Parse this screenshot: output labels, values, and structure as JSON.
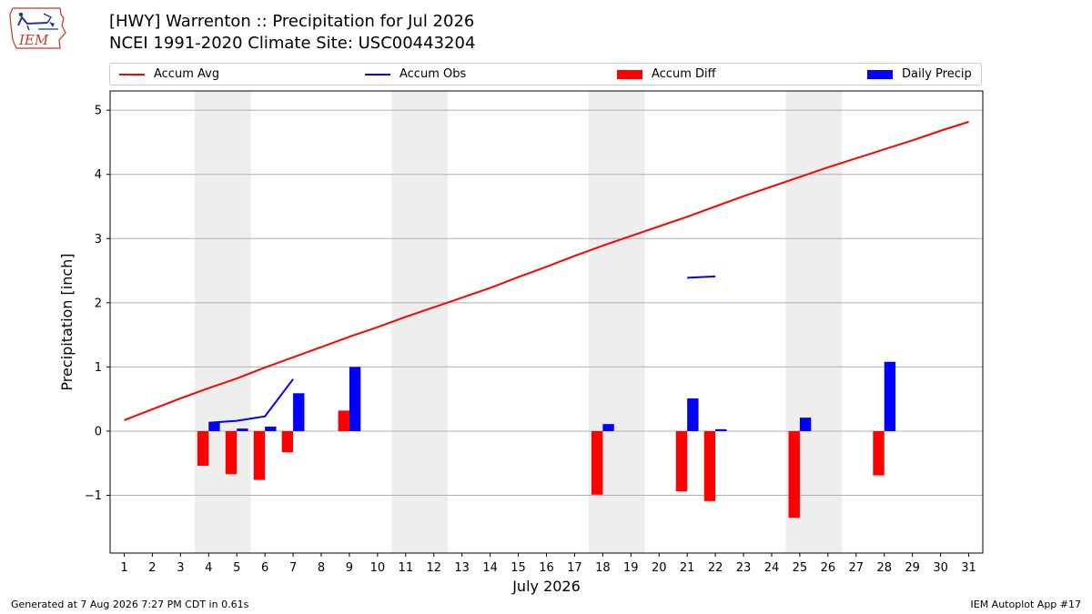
{
  "header": {
    "title_line1": "[HWY] Warrenton :: Precipitation for Jul 2026",
    "title_line2": "NCEI 1991-2020 Climate Site: USC00443204",
    "logo_text": "IEM"
  },
  "footer": {
    "left": "Generated at 7 Aug 2026 7:27 PM CDT in 0.61s",
    "right": "IEM Autoplot App #17"
  },
  "colors": {
    "accum_avg": "#ff0000",
    "accum_obs": "#0000ff",
    "accum_diff": "#ff0000",
    "daily_precip": "#0000ff",
    "weekend_shade": "#eeeeee",
    "grid": "#b0b0b0"
  },
  "chart_data": {
    "type": "bar",
    "xlabel": "July 2026",
    "ylabel": "Precipitation [inch]",
    "xlim": [
      0.5,
      31.5
    ],
    "ylim": [
      -1.9,
      5.3
    ],
    "yticks": [
      -1,
      0,
      1,
      2,
      3,
      4,
      5
    ],
    "ytick_labels": [
      "−1",
      "0",
      "1",
      "2",
      "3",
      "4",
      "5"
    ],
    "days": [
      1,
      2,
      3,
      4,
      5,
      6,
      7,
      8,
      9,
      10,
      11,
      12,
      13,
      14,
      15,
      16,
      17,
      18,
      19,
      20,
      21,
      22,
      23,
      24,
      25,
      26,
      27,
      28,
      29,
      30,
      31
    ],
    "grid": true,
    "legend_position": "top",
    "weekend_spans": [
      [
        3.5,
        5.5
      ],
      [
        10.5,
        12.5
      ],
      [
        17.5,
        19.5
      ],
      [
        24.5,
        26.5
      ]
    ],
    "legend": [
      {
        "key": "accum_avg",
        "label": "Accum Avg",
        "kind": "line"
      },
      {
        "key": "accum_obs",
        "label": "Accum Obs",
        "kind": "line"
      },
      {
        "key": "accum_diff",
        "label": "Accum Diff",
        "kind": "bar"
      },
      {
        "key": "daily_precip",
        "label": "Daily Precip",
        "kind": "bar"
      }
    ],
    "series": [
      {
        "name": "Accum Avg",
        "type": "line",
        "x": [
          1,
          2,
          3,
          4,
          5,
          6,
          7,
          8,
          9,
          10,
          11,
          12,
          13,
          14,
          15,
          16,
          17,
          18,
          19,
          20,
          21,
          22,
          23,
          24,
          25,
          26,
          27,
          28,
          29,
          30,
          31
        ],
        "values": [
          0.17,
          0.34,
          0.51,
          0.67,
          0.82,
          0.99,
          1.15,
          1.31,
          1.47,
          1.62,
          1.78,
          1.93,
          2.08,
          2.23,
          2.4,
          2.56,
          2.73,
          2.89,
          3.04,
          3.19,
          3.34,
          3.5,
          3.66,
          3.81,
          3.96,
          4.11,
          4.25,
          4.39,
          4.53,
          4.68,
          4.82
        ]
      },
      {
        "name": "Accum Obs",
        "type": "line",
        "segments": [
          {
            "x": [
              4,
              5,
              6,
              7
            ],
            "values": [
              0.13,
              0.16,
              0.23,
              0.81
            ]
          },
          {
            "x": [
              21,
              22
            ],
            "values": [
              2.39,
              2.41
            ]
          }
        ]
      },
      {
        "name": "Accum Diff",
        "type": "bar",
        "x": [
          4,
          5,
          6,
          7,
          9,
          18,
          21,
          22,
          25,
          28
        ],
        "values": [
          -0.54,
          -0.67,
          -0.76,
          -0.33,
          0.32,
          -0.99,
          -0.94,
          -1.09,
          -1.35,
          -0.69
        ]
      },
      {
        "name": "Daily Precip",
        "type": "bar",
        "x": [
          4,
          5,
          6,
          7,
          9,
          18,
          21,
          22,
          25,
          28
        ],
        "values": [
          0.13,
          0.04,
          0.07,
          0.59,
          1.0,
          0.11,
          0.51,
          0.03,
          0.21,
          1.08
        ]
      }
    ]
  }
}
